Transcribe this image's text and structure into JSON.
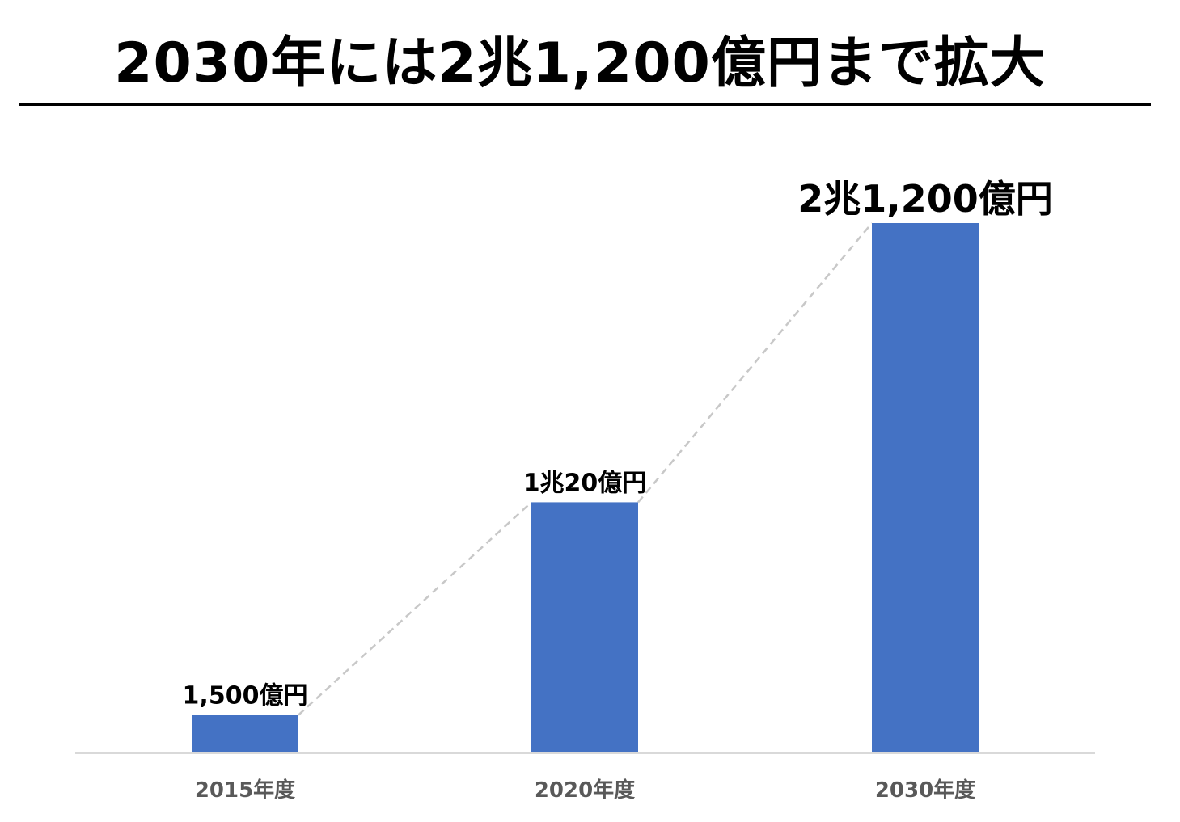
{
  "title": "2030年には2兆1,200億円まで拡大",
  "colors": {
    "bar": "#4472C4",
    "connector": "#C8C8C8",
    "axis": "#D9D9D9",
    "tick_text": "#595959",
    "label_text": "#000000"
  },
  "chart_data": {
    "type": "bar",
    "title": "2030年には2兆1,200億円まで拡大",
    "categories": [
      "2015年度",
      "2020年度",
      "2030年度"
    ],
    "values": [
      1500,
      10020,
      21200
    ],
    "value_unit": "億円",
    "data_labels": [
      "1,500億円",
      "1兆20億円",
      "2兆1,200億円"
    ],
    "xlabel": "",
    "ylabel": "",
    "ylim": [
      0,
      21200
    ],
    "grid": false,
    "legend": "none",
    "connector_line": "dashed"
  }
}
